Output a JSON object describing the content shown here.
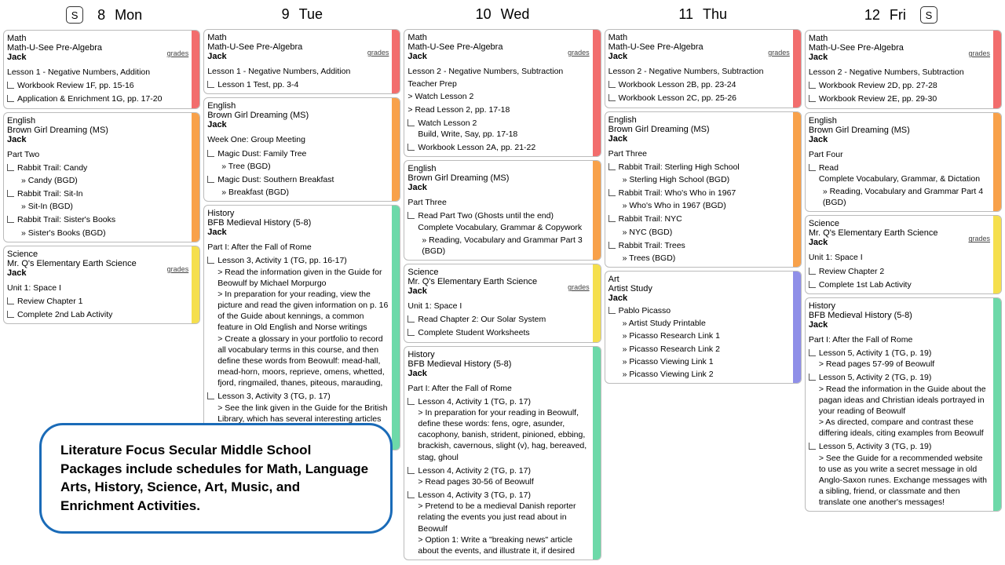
{
  "colors": {
    "red": "#f26d6d",
    "orange": "#f8a14a",
    "yellow": "#f5df4d",
    "green": "#6dd9a9",
    "blue": "#8f8fe8",
    "border": "#bbbbbb",
    "bg": "#ffffff"
  },
  "s_label": "S",
  "grades_label": "grades",
  "callout_text": "Literature Focus Secular Middle School Packages include schedules for Math, Language Arts, History, Science, Art, Music, and Enrichment Activities.",
  "days": [
    {
      "num": "8",
      "dow": "Mon",
      "left_badge": true,
      "cards": [
        {
          "subject": "Math",
          "title": "Math-U-See Pre-Algebra",
          "student": "Jack",
          "stripe": "red",
          "grades": true,
          "sections": [
            {
              "heading": "Lesson 1 - Negative Numbers, Addition",
              "items": [
                {
                  "text": "Workbook Review 1F, pp. 15-16"
                },
                {
                  "text": "Application & Enrichment 1G, pp. 17-20"
                }
              ]
            }
          ]
        },
        {
          "subject": "English",
          "title": "Brown Girl Dreaming (MS)",
          "student": "Jack",
          "stripe": "orange",
          "sections": [
            {
              "heading": "Part Two",
              "items": [
                {
                  "text": "Rabbit Trail: Candy",
                  "subs": [
                    "» Candy (BGD)"
                  ]
                },
                {
                  "text": "Rabbit Trail: Sit-In",
                  "subs": [
                    "» Sit-In (BGD)"
                  ]
                },
                {
                  "text": "Rabbit Trail: Sister's Books",
                  "subs": [
                    "» Sister's Books (BGD)"
                  ]
                }
              ]
            }
          ]
        },
        {
          "subject": "Science",
          "title": "Mr. Q's Elementary Earth Science",
          "student": "Jack",
          "stripe": "yellow",
          "grades": true,
          "sections": [
            {
              "heading": "Unit 1: Space I",
              "items": [
                {
                  "text": "Review Chapter 1"
                },
                {
                  "text": "Complete 2nd Lab Activity"
                }
              ]
            }
          ]
        }
      ]
    },
    {
      "num": "9",
      "dow": "Tue",
      "cards": [
        {
          "subject": "Math",
          "title": "Math-U-See Pre-Algebra",
          "student": "Jack",
          "stripe": "red",
          "grades": true,
          "sections": [
            {
              "heading": "Lesson 1 - Negative Numbers, Addition",
              "items": [
                {
                  "text": "Lesson 1 Test, pp. 3-4"
                }
              ]
            }
          ]
        },
        {
          "subject": "English",
          "title": "Brown Girl Dreaming (MS)",
          "student": "Jack",
          "stripe": "orange",
          "sections": [
            {
              "heading": "Week One: Group Meeting",
              "items": [
                {
                  "text": "Magic Dust: Family Tree",
                  "subs": [
                    "» Tree (BGD)"
                  ]
                },
                {
                  "text": "Magic Dust: Southern Breakfast",
                  "subs": [
                    "» Breakfast (BGD)"
                  ]
                }
              ]
            }
          ]
        },
        {
          "subject": "History",
          "title": "BFB Medieval History (5-8)",
          "student": "Jack",
          "stripe": "green",
          "sections": [
            {
              "heading": "Part I: After the Fall of Rome",
              "items": [
                {
                  "text": "Lesson 3, Activity 1 (TG, pp. 16-17)\n> Read the information given in the Guide for Beowulf by Michael Morpurgo\n> In preparation for your reading, view the picture and read the given information on p. 16 of the Guide about kennings, a common feature in Old English and Norse writings\n> Create a glossary in your portfolio to record all vocabulary terms in this course, and then define these words from Beowulf: mead-hall, mead-horn, moors, reprieve, omens, whetted, fjord, ringmailed, thanes, piteous, marauding,"
                },
                {
                  "text": "Lesson 3, Activity 3 (TG, p. 17)\n> See the link given in the Guide for the British Library, which has several interesting articles on Beowulf, Old English, and other works of medieval literature"
                }
              ]
            }
          ]
        }
      ]
    },
    {
      "num": "10",
      "dow": "Wed",
      "cards": [
        {
          "subject": "Math",
          "title": "Math-U-See Pre-Algebra",
          "student": "Jack",
          "stripe": "red",
          "grades": true,
          "sections": [
            {
              "heading": "Lesson 2 - Negative Numbers, Subtraction",
              "plain": [
                "Teacher Prep",
                "> Watch Lesson 2",
                "> Read Lesson 2, pp. 17-18"
              ],
              "items": [
                {
                  "text": "Watch Lesson 2\nBuild, Write, Say, pp. 17-18"
                },
                {
                  "text": "Workbook Lesson 2A, pp. 21-22"
                }
              ]
            }
          ]
        },
        {
          "subject": "English",
          "title": "Brown Girl Dreaming (MS)",
          "student": "Jack",
          "stripe": "orange",
          "sections": [
            {
              "heading": "Part Three",
              "items": [
                {
                  "text": "Read Part Two (Ghosts until the end)\nComplete Vocabulary, Grammar & Copywork",
                  "subs": [
                    "» Reading, Vocabulary and Grammar Part 3 (BGD)"
                  ]
                }
              ]
            }
          ]
        },
        {
          "subject": "Science",
          "title": "Mr. Q's Elementary Earth Science",
          "student": "Jack",
          "stripe": "yellow",
          "grades": true,
          "sections": [
            {
              "heading": "Unit 1: Space I",
              "items": [
                {
                  "text": "Read Chapter 2: Our Solar System"
                },
                {
                  "text": "Complete Student Worksheets"
                }
              ]
            }
          ]
        },
        {
          "subject": "History",
          "title": "BFB Medieval History (5-8)",
          "student": "Jack",
          "stripe": "green",
          "sections": [
            {
              "heading": "Part I: After the Fall of Rome",
              "items": [
                {
                  "text": "Lesson 4, Activity 1 (TG, p. 17)\n> In preparation for your reading in Beowulf, define these words: fens, ogre, asunder, cacophony, banish, strident, pinioned, ebbing, brackish, cavernous, slight (v), hag, bereaved, stag, ghoul"
                },
                {
                  "text": "Lesson 4, Activity 2 (TG, p. 17)\n> Read pages 30-56 of Beowulf"
                },
                {
                  "text": "Lesson 4, Activity 3 (TG, p. 17)\n> Pretend to be a medieval Danish reporter relating the events you just read about in Beowulf\n> Option 1: Write a \"breaking news\" article about the events, and illustrate it, if desired"
                }
              ]
            }
          ]
        }
      ]
    },
    {
      "num": "11",
      "dow": "Thu",
      "cards": [
        {
          "subject": "Math",
          "title": "Math-U-See Pre-Algebra",
          "student": "Jack",
          "stripe": "red",
          "grades": true,
          "sections": [
            {
              "heading": "Lesson 2 - Negative Numbers, Subtraction",
              "items": [
                {
                  "text": "Workbook Lesson 2B, pp. 23-24"
                },
                {
                  "text": "Workbook Lesson 2C, pp. 25-26"
                }
              ]
            }
          ]
        },
        {
          "subject": "English",
          "title": "Brown Girl Dreaming (MS)",
          "student": "Jack",
          "stripe": "orange",
          "sections": [
            {
              "heading": "Part Three",
              "items": [
                {
                  "text": "Rabbit Trail: Sterling High School",
                  "subs": [
                    "» Sterling High School (BGD)"
                  ]
                },
                {
                  "text": "Rabbit Trail: Who's Who in 1967",
                  "subs": [
                    "» Who's Who in 1967 (BGD)"
                  ]
                },
                {
                  "text": "Rabbit Trail: NYC",
                  "subs": [
                    "» NYC (BGD)"
                  ]
                },
                {
                  "text": "Rabbit Trail: Trees",
                  "subs": [
                    "» Trees (BGD)"
                  ]
                }
              ]
            }
          ]
        },
        {
          "subject": "Art",
          "title": "Artist Study",
          "student": "Jack",
          "stripe": "blue",
          "sections": [
            {
              "heading": "",
              "items": [
                {
                  "text": "Pablo Picasso",
                  "subs": [
                    "» Artist Study Printable",
                    "» Picasso Research Link 1",
                    "» Picasso Research Link 2",
                    "» Picasso Viewing Link 1",
                    "» Picasso Viewing Link 2"
                  ]
                }
              ]
            }
          ]
        }
      ]
    },
    {
      "num": "12",
      "dow": "Fri",
      "right_badge": true,
      "cards": [
        {
          "subject": "Math",
          "title": "Math-U-See Pre-Algebra",
          "student": "Jack",
          "stripe": "red",
          "grades": true,
          "sections": [
            {
              "heading": "Lesson 2 - Negative Numbers, Subtraction",
              "items": [
                {
                  "text": "Workbook Review 2D, pp. 27-28"
                },
                {
                  "text": "Workbook Review 2E, pp. 29-30"
                }
              ]
            }
          ]
        },
        {
          "subject": "English",
          "title": "Brown Girl Dreaming (MS)",
          "student": "Jack",
          "stripe": "orange",
          "sections": [
            {
              "heading": "Part Four",
              "items": [
                {
                  "text": "Read\nComplete Vocabulary, Grammar, & Dictation",
                  "subs": [
                    "» Reading, Vocabulary and Grammar Part 4 (BGD)"
                  ]
                }
              ]
            }
          ]
        },
        {
          "subject": "Science",
          "title": "Mr. Q's Elementary Earth Science",
          "student": "Jack",
          "stripe": "yellow",
          "grades": true,
          "sections": [
            {
              "heading": "Unit 1: Space I",
              "items": [
                {
                  "text": "Review Chapter 2"
                },
                {
                  "text": "Complete 1st Lab Activity"
                }
              ]
            }
          ]
        },
        {
          "subject": "History",
          "title": "BFB Medieval History (5-8)",
          "student": "Jack",
          "stripe": "green",
          "sections": [
            {
              "heading": "Part I: After the Fall of Rome",
              "items": [
                {
                  "text": "Lesson 5, Activity 1 (TG, p. 19)\n> Read pages 57-99 of Beowulf"
                },
                {
                  "text": "Lesson 5, Activity 2 (TG, p. 19)\n> Read the information in the Guide about the pagan ideas and Christian ideals portrayed in your reading of Beowulf\n> As directed, compare and contrast these differing ideals, citing examples from Beowulf"
                },
                {
                  "text": "Lesson 5, Activity 3 (TG, p. 19)\n> See the Guide for a recommended website to use as you write a secret message in old Anglo-Saxon runes. Exchange messages with a sibling, friend, or classmate and then translate one another's messages!"
                }
              ]
            }
          ]
        }
      ]
    }
  ]
}
